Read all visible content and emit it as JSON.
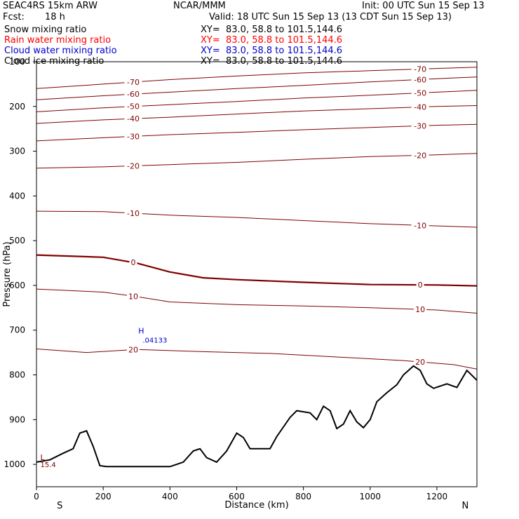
{
  "header": {
    "model": "SEAC4RS 15km ARW",
    "center": "NCAR/MMM",
    "init": "Init: 00 UTC Sun 15 Sep 13",
    "fcst_label": "Fcst:",
    "fcst_value": "18 h",
    "valid": "Valid: 18 UTC Sun 15 Sep 13 (13 CDT Sun 15 Sep 13)",
    "fields": [
      {
        "name": "Snow mixing ratio",
        "xy": "XY=  83.0, 58.8 to 101.5,144.6",
        "color": "#000000"
      },
      {
        "name": "Rain water mixing ratio",
        "xy": "XY=  83.0, 58.8 to 101.5,144.6",
        "color": "#ff0000"
      },
      {
        "name": "Cloud water mixing ratio",
        "xy": "XY=  83.0, 58.8 to 101.5,144.6",
        "color": "#0000cc"
      },
      {
        "name": "Cloud ice mixing ratio",
        "xy": "XY=  83.0, 58.8 to 101.5,144.6",
        "color": "#000000"
      }
    ]
  },
  "chart_data": {
    "type": "line",
    "xlabel": "Distance (km)",
    "ylabel": "Pressure (hPa)",
    "xlim": [
      0,
      1320
    ],
    "ylim": [
      100,
      1050
    ],
    "x_ticks": [
      0,
      200,
      400,
      600,
      800,
      1000,
      1200
    ],
    "y_ticks": [
      100,
      200,
      300,
      400,
      500,
      600,
      700,
      800,
      900,
      1000
    ],
    "x_end_labels": {
      "left": "S",
      "right": "N"
    },
    "contour_color": "#800000",
    "terrain_color": "#000000",
    "temperature_contours": [
      {
        "level": -70,
        "points": [
          [
            0,
            160
          ],
          [
            200,
            150
          ],
          [
            400,
            140
          ],
          [
            600,
            132
          ],
          [
            800,
            125
          ],
          [
            1000,
            120
          ],
          [
            1200,
            115
          ],
          [
            1320,
            112
          ]
        ]
      },
      {
        "level": -60,
        "points": [
          [
            0,
            185
          ],
          [
            200,
            176
          ],
          [
            400,
            168
          ],
          [
            600,
            160
          ],
          [
            800,
            153
          ],
          [
            1000,
            145
          ],
          [
            1200,
            138
          ],
          [
            1320,
            134
          ]
        ]
      },
      {
        "level": -50,
        "points": [
          [
            0,
            212
          ],
          [
            200,
            203
          ],
          [
            400,
            196
          ],
          [
            600,
            189
          ],
          [
            800,
            181
          ],
          [
            1000,
            175
          ],
          [
            1200,
            168
          ],
          [
            1320,
            164
          ]
        ]
      },
      {
        "level": -40,
        "points": [
          [
            0,
            238
          ],
          [
            200,
            230
          ],
          [
            400,
            224
          ],
          [
            600,
            217
          ],
          [
            800,
            210
          ],
          [
            1000,
            205
          ],
          [
            1200,
            200
          ],
          [
            1320,
            198
          ]
        ]
      },
      {
        "level": -30,
        "points": [
          [
            0,
            277
          ],
          [
            200,
            270
          ],
          [
            400,
            263
          ],
          [
            600,
            258
          ],
          [
            800,
            252
          ],
          [
            1000,
            247
          ],
          [
            1200,
            242
          ],
          [
            1320,
            240
          ]
        ]
      },
      {
        "level": -20,
        "points": [
          [
            0,
            338
          ],
          [
            200,
            335
          ],
          [
            400,
            330
          ],
          [
            600,
            325
          ],
          [
            800,
            318
          ],
          [
            1000,
            312
          ],
          [
            1200,
            308
          ],
          [
            1320,
            305
          ]
        ]
      },
      {
        "level": -10,
        "points": [
          [
            0,
            434
          ],
          [
            200,
            435
          ],
          [
            400,
            443
          ],
          [
            600,
            448
          ],
          [
            800,
            455
          ],
          [
            1000,
            462
          ],
          [
            1200,
            467
          ],
          [
            1320,
            470
          ]
        ]
      },
      {
        "level": 0,
        "points": [
          [
            0,
            532
          ],
          [
            200,
            537
          ],
          [
            300,
            550
          ],
          [
            400,
            570
          ],
          [
            500,
            583
          ],
          [
            600,
            587
          ],
          [
            800,
            593
          ],
          [
            1000,
            598
          ],
          [
            1200,
            599
          ],
          [
            1320,
            601
          ]
        ]
      },
      {
        "level": 10,
        "points": [
          [
            0,
            608
          ],
          [
            200,
            615
          ],
          [
            300,
            625
          ],
          [
            400,
            637
          ],
          [
            600,
            643
          ],
          [
            800,
            646
          ],
          [
            1000,
            650
          ],
          [
            1200,
            655
          ],
          [
            1320,
            662
          ]
        ]
      },
      {
        "level": 20,
        "points": [
          [
            0,
            742
          ],
          [
            150,
            750
          ],
          [
            300,
            743
          ],
          [
            500,
            748
          ],
          [
            700,
            752
          ],
          [
            900,
            760
          ],
          [
            1100,
            768
          ],
          [
            1250,
            777
          ],
          [
            1320,
            787
          ]
        ]
      }
    ],
    "terrain": [
      [
        0,
        995
      ],
      [
        40,
        990
      ],
      [
        80,
        975
      ],
      [
        110,
        965
      ],
      [
        130,
        930
      ],
      [
        150,
        925
      ],
      [
        170,
        960
      ],
      [
        190,
        1003
      ],
      [
        210,
        1005
      ],
      [
        300,
        1005
      ],
      [
        400,
        1005
      ],
      [
        440,
        995
      ],
      [
        470,
        970
      ],
      [
        490,
        965
      ],
      [
        510,
        985
      ],
      [
        540,
        995
      ],
      [
        570,
        970
      ],
      [
        600,
        930
      ],
      [
        620,
        940
      ],
      [
        640,
        965
      ],
      [
        700,
        965
      ],
      [
        720,
        938
      ],
      [
        760,
        895
      ],
      [
        780,
        880
      ],
      [
        820,
        885
      ],
      [
        840,
        900
      ],
      [
        860,
        870
      ],
      [
        880,
        880
      ],
      [
        900,
        920
      ],
      [
        920,
        910
      ],
      [
        940,
        880
      ],
      [
        960,
        905
      ],
      [
        980,
        918
      ],
      [
        1000,
        900
      ],
      [
        1020,
        860
      ],
      [
        1050,
        840
      ],
      [
        1080,
        822
      ],
      [
        1100,
        800
      ],
      [
        1130,
        780
      ],
      [
        1150,
        790
      ],
      [
        1170,
        820
      ],
      [
        1190,
        830
      ],
      [
        1230,
        820
      ],
      [
        1260,
        828
      ],
      [
        1290,
        790
      ],
      [
        1320,
        812
      ]
    ],
    "cloud_water_max": {
      "marker": "H",
      "value": ".04133",
      "x": 335,
      "p": 715
    },
    "surface_min": {
      "marker": "L",
      "value": "15.4",
      "x": 20,
      "p": 1003
    }
  }
}
